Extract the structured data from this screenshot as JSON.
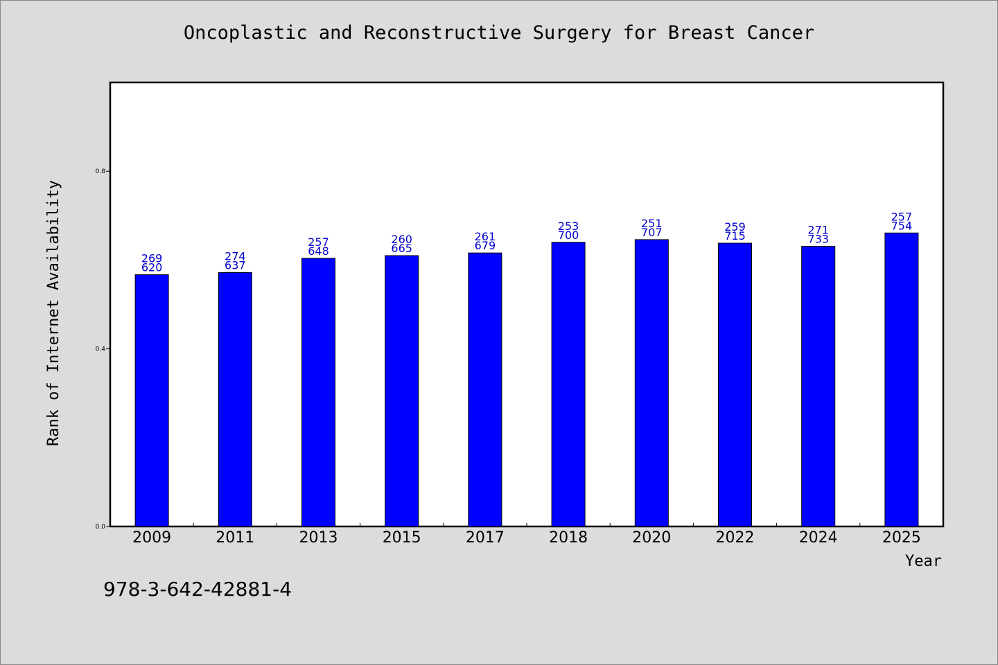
{
  "chart_data": {
    "type": "bar",
    "title": "Oncoplastic and Reconstructive Surgery for Breast Cancer",
    "xlabel": "Year",
    "ylabel": "Rank of Internet Availability",
    "categories": [
      "2009",
      "2011",
      "2013",
      "2015",
      "2017",
      "2018",
      "2020",
      "2022",
      "2024",
      "2025"
    ],
    "values": [
      0.567,
      0.572,
      0.604,
      0.61,
      0.616,
      0.64,
      0.646,
      0.638,
      0.631,
      0.661
    ],
    "bar_labels": [
      [
        "269",
        "620"
      ],
      [
        "274",
        "637"
      ],
      [
        "257",
        "648"
      ],
      [
        "260",
        "665"
      ],
      [
        "261",
        "679"
      ],
      [
        "253",
        "700"
      ],
      [
        "251",
        "707"
      ],
      [
        "259",
        "715"
      ],
      [
        "271",
        "733"
      ],
      [
        "257",
        "754"
      ]
    ],
    "yticks": [
      0.0,
      0.4,
      0.8
    ],
    "ytick_labels": [
      "0.0",
      "0.4",
      "0.8"
    ],
    "ylim": [
      0,
      1.0
    ],
    "grid": false,
    "colors": {
      "bar": "#0000ff",
      "bar_label": "#0000cc",
      "background": "#dcdcdc",
      "plot": "#ffffff"
    }
  },
  "footer": {
    "isbn": "978-3-642-42881-4"
  }
}
